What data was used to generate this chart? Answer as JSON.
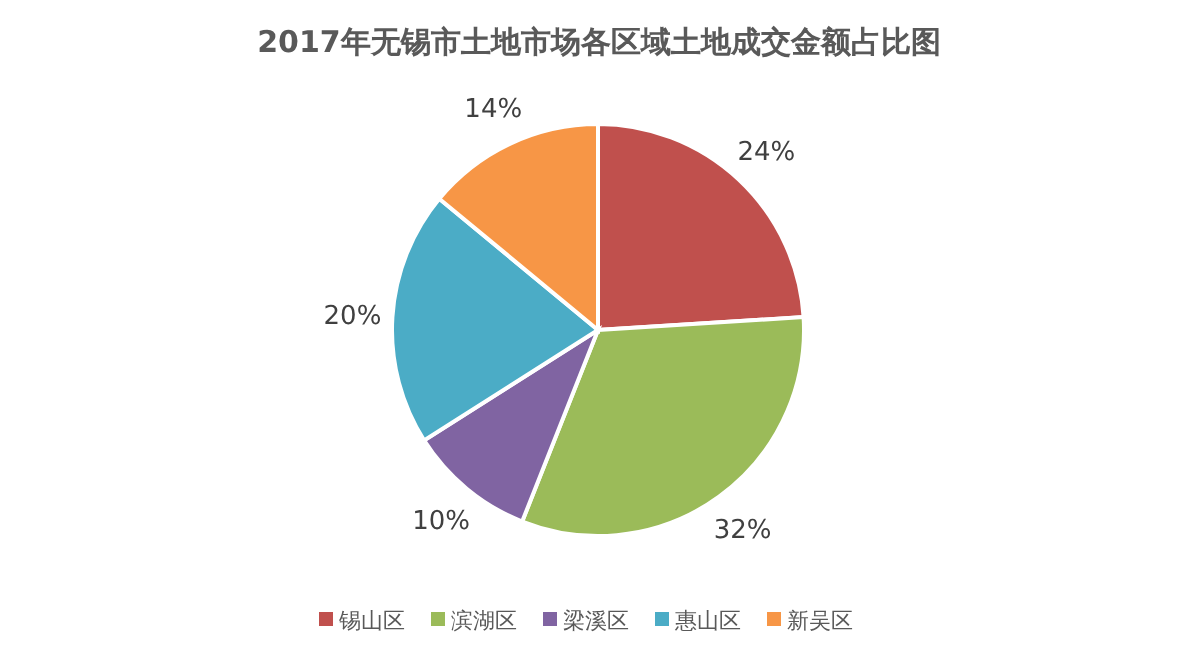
{
  "chart_data": {
    "type": "pie",
    "title": "2017年无锡市土地市场各区域土地成交金额占比图",
    "categories": [
      "锡山区",
      "滨湖区",
      "梁溪区",
      "惠山区",
      "新吴区"
    ],
    "values": [
      24,
      32,
      10,
      20,
      14
    ],
    "colors": [
      "#c0504d",
      "#9bbb59",
      "#8064a2",
      "#4bacc6",
      "#f79646"
    ],
    "value_labels": [
      "24%",
      "32%",
      "10%",
      "20%",
      "14%"
    ],
    "legend": "bottom"
  }
}
